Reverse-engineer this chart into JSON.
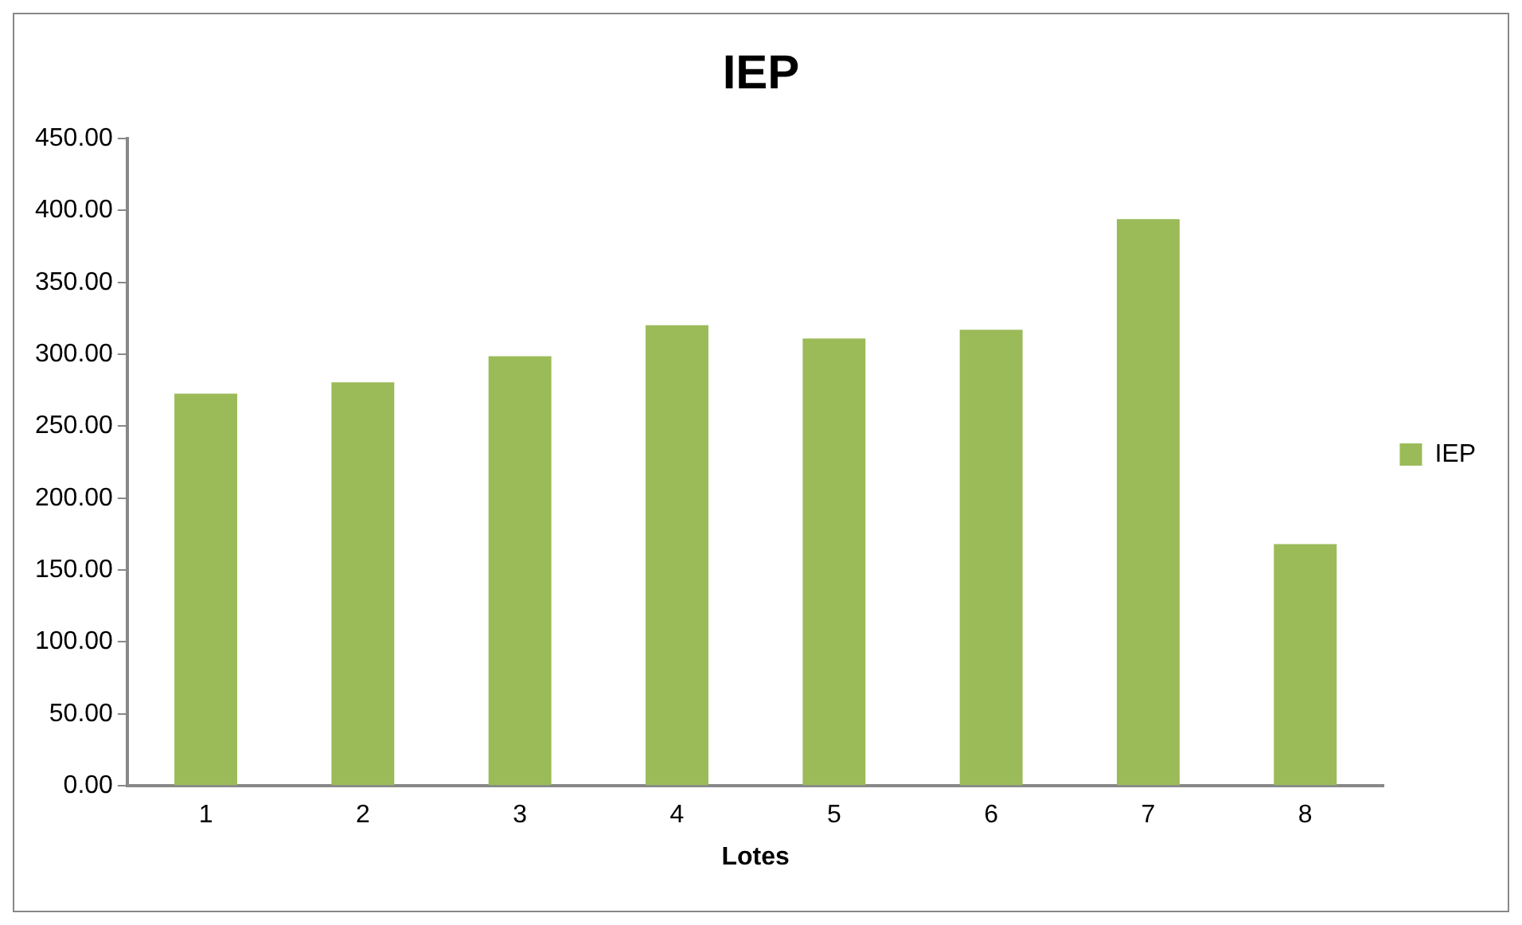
{
  "chart_data": {
    "type": "bar",
    "title": "IEP",
    "xlabel": "Lotes",
    "categories": [
      "1",
      "2",
      "3",
      "4",
      "5",
      "6",
      "7",
      "8"
    ],
    "series": [
      {
        "name": "IEP",
        "color": "#9bbb59",
        "values": [
          272.6,
          280.5,
          298.6,
          320.2,
          311,
          317,
          394,
          168
        ]
      }
    ],
    "ylim": [
      0,
      450
    ],
    "yticks": [
      {
        "value": 0,
        "label": "0.00"
      },
      {
        "value": 50,
        "label": "50.00"
      },
      {
        "value": 100,
        "label": "100.00"
      },
      {
        "value": 150,
        "label": "150.00"
      },
      {
        "value": 200,
        "label": "200.00"
      },
      {
        "value": 250,
        "label": "250.00"
      },
      {
        "value": 300,
        "label": "300.00"
      },
      {
        "value": 350,
        "label": "350.00"
      },
      {
        "value": 400,
        "label": "400.00"
      },
      {
        "value": 450,
        "label": "450.00"
      }
    ],
    "grid": false,
    "legend": "right"
  }
}
